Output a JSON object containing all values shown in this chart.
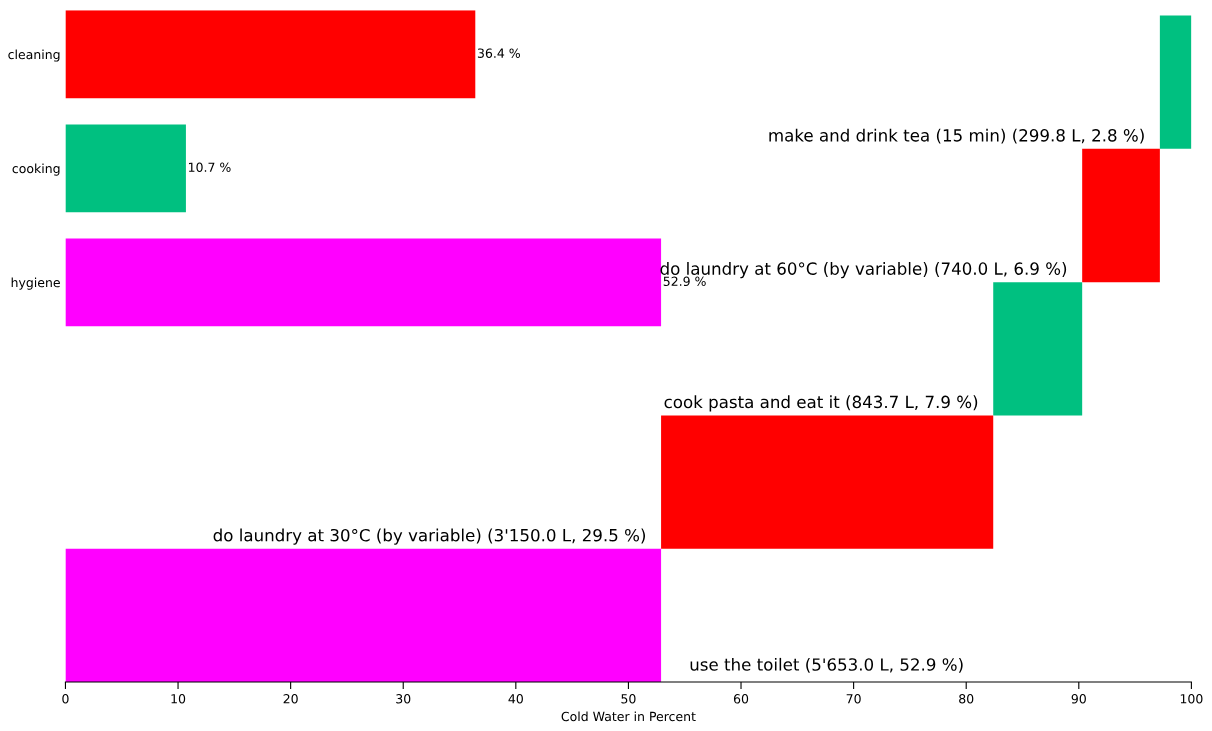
{
  "chart_data": [
    {
      "type": "bar",
      "orientation": "horizontal",
      "categories": [
        "cleaning",
        "cooking",
        "hygiene"
      ],
      "values": [
        36.4,
        10.7,
        52.9
      ],
      "colors": [
        "#ff0000",
        "#00c080",
        "#ff00ff"
      ],
      "value_labels": [
        "36.4 %",
        "10.7 %",
        "52.9 %"
      ],
      "xlim": [
        0,
        100
      ],
      "tick_labels": "y"
    },
    {
      "type": "bar",
      "orientation": "horizontal",
      "categories": [
        null,
        null,
        null,
        null,
        null
      ],
      "base": [
        97.2,
        90.3,
        82.4,
        52.9,
        0
      ],
      "values": [
        2.8,
        6.9,
        7.9,
        29.5,
        52.9
      ],
      "colors": [
        "#00c080",
        "#ff0000",
        "#00c080",
        "#ff0000",
        "#ff00ff"
      ],
      "value_labels": [
        "make and drink tea (15 min) (299.8 L, 2.8 %)",
        "do laundry at 60°C (by variable) (740.0 L, 6.9 %)",
        "cook pasta and eat it (843.7 L, 7.9 %)",
        "do laundry at 30°C (by variable) (3'150.0 L, 29.5 %)",
        "use the toilet (5'653.0 L, 52.9 %)"
      ],
      "xlim": [
        0,
        100
      ],
      "xticks": [
        0,
        10,
        20,
        30,
        40,
        50,
        60,
        70,
        80,
        90,
        100
      ],
      "xlabel": "Cold Water in Percent",
      "tick_labels": "x"
    }
  ]
}
